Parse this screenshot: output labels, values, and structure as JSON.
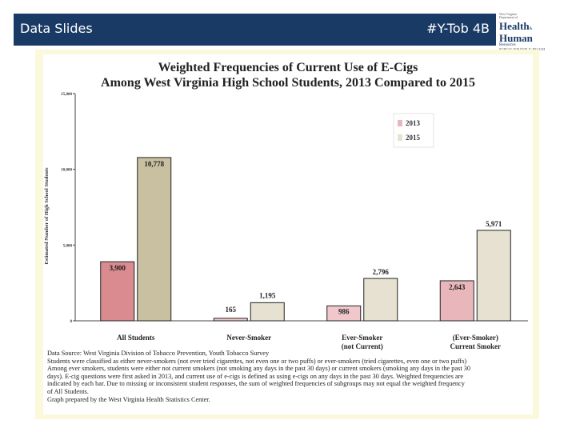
{
  "header": {
    "left_label": "Data Slides",
    "right_label": "#Y-Tob 4B",
    "bg_color": "#1a3a66"
  },
  "logo": {
    "line1": "West Virginia",
    "line2": "Department of",
    "word1": "Health",
    "amp": "&",
    "word2": "Human",
    "word3": "Resources",
    "line3": "BUREAU FOR PUBLIC HEALTH"
  },
  "chart_data": {
    "type": "bar",
    "title": "Weighted Frequencies of Current Use of E-Cigs",
    "subtitle": "Among West Virginia High School Students, 2013 Compared to 2015",
    "xlabel": "",
    "ylabel": "Estimated Number of High School Students",
    "ylim": [
      0,
      15000
    ],
    "yticks": [
      {
        "value": 0,
        "label": "0"
      },
      {
        "value": 5000,
        "label": "5,000"
      },
      {
        "value": 10000,
        "label": "10,000"
      },
      {
        "value": 15000,
        "label": "15,000"
      }
    ],
    "grid": false,
    "legend_position": "top-right",
    "categories": [
      {
        "line1": "All Students",
        "line2": ""
      },
      {
        "line1": "Never-Smoker",
        "line2": ""
      },
      {
        "line1": "Ever-Smoker",
        "line2": "(not Current)"
      },
      {
        "line1": "(Ever-Smoker)",
        "line2": "Current Smoker"
      }
    ],
    "series": [
      {
        "name": "2013",
        "values": [
          3900,
          165,
          986,
          2643
        ],
        "labels": [
          "3,900",
          "165",
          "986",
          "2,643"
        ],
        "colors": [
          "#d98b8f",
          "#f0c8cb",
          "#f0c8cb",
          "#e9b7bb"
        ]
      },
      {
        "name": "2015",
        "values": [
          10778,
          1195,
          2796,
          5971
        ],
        "labels": [
          "10,778",
          "1,195",
          "2,796",
          "5,971"
        ],
        "colors": [
          "#c8c0a0",
          "#e6e1d0",
          "#e6e1d0",
          "#e6e1d0"
        ]
      }
    ]
  },
  "notes": [
    "Data Source: West Virginia  Division of Tobacco Prevention, Youth Tobacco Survey",
    "Students were classified as either never-smokers (not ever tried cigarettes, not even one or two puffs) or ever-smokers (tried cigarettes, even one or two puffs)",
    "Among ever smokers, students were either not current smokers (not smoking any days in the past 30 days) or current smokers (smoking any days in the past 30",
    "days). E-cig questions were first asked in 2013, and current use of e-cigs is defined as using e-cigs on any days in the past 30 days. Weighted frequencies are",
    "indicated by each bar. Due to missing or inconsistent student responses, the sum of weighted frequencies of subgroups may not equal the weighted frequency",
    "of All Students.",
    "Graph prepared by the West Virginia  Health Statistics Center."
  ]
}
